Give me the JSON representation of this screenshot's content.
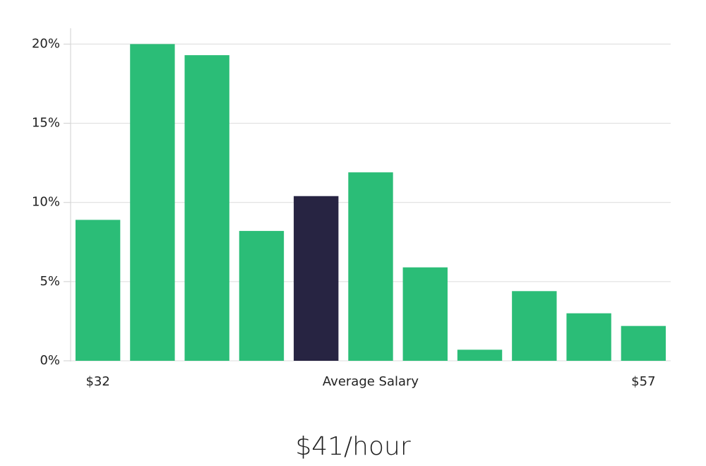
{
  "chart_data": {
    "type": "bar",
    "categories": [
      "$32",
      null,
      null,
      null,
      null,
      null,
      null,
      null,
      null,
      null,
      "$57"
    ],
    "values": [
      8.9,
      20.0,
      19.3,
      8.2,
      10.4,
      11.9,
      5.9,
      0.7,
      4.4,
      3.0,
      2.2
    ],
    "colors": [
      "#2bbd77",
      "#2bbd77",
      "#2bbd77",
      "#2bbd77",
      "#272442",
      "#2bbd77",
      "#2bbd77",
      "#2bbd77",
      "#2bbd77",
      "#2bbd77",
      "#2bbd77"
    ],
    "x_label": "Average Salary",
    "annotation": "$41/hour",
    "ylim": [
      0,
      21
    ],
    "yticks": [
      {
        "value": 0,
        "label": "0%"
      },
      {
        "value": 5,
        "label": "5%"
      },
      {
        "value": 10,
        "label": "10%"
      },
      {
        "value": 15,
        "label": "15%"
      },
      {
        "value": 20,
        "label": "20%"
      }
    ],
    "grid": true
  }
}
